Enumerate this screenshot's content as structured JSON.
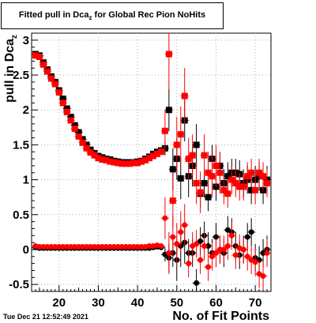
{
  "title": {
    "main": "Fitted pull in Dca",
    "sub": "z",
    "rest": " for Global Rec Pion NoHits"
  },
  "timestamp": "Tue Dec 21 12:52:49 2021",
  "colors": {
    "series_black": "#000000",
    "series_red": "#ff0000",
    "grid": "#b0b0b0"
  },
  "chart_data": {
    "type": "scatter",
    "title": "Fitted pull in Dca_z for Global Rec Pion NoHits",
    "xlabel": "No. of Fit Points",
    "ylabel": "pull in Dca_z",
    "xlim": [
      13,
      74
    ],
    "ylim": [
      -0.6,
      3.1
    ],
    "x_ticks": [
      20,
      30,
      40,
      50,
      60,
      70
    ],
    "y_ticks": [
      -0.5,
      0,
      0.5,
      1,
      1.5,
      2,
      2.5,
      3
    ],
    "x_tick_labels": [
      "20",
      "30",
      "40",
      "50",
      "60",
      "70"
    ],
    "y_tick_labels": [
      "-0.5",
      "0",
      "0.5",
      "1",
      "1.5",
      "2",
      "2.5",
      "3"
    ],
    "grid": true,
    "legend": "none",
    "series": [
      {
        "color": "#000000",
        "marker": "square",
        "points": [
          [
            14,
            2.8,
            0
          ],
          [
            15,
            2.78,
            0
          ],
          [
            16,
            2.68,
            0
          ],
          [
            17,
            2.58,
            0
          ],
          [
            18,
            2.48,
            0
          ],
          [
            19,
            2.4,
            0
          ],
          [
            20,
            2.28,
            0
          ],
          [
            21,
            2.16,
            0
          ],
          [
            22,
            2.02,
            0
          ],
          [
            23,
            1.9,
            0
          ],
          [
            24,
            1.78,
            0
          ],
          [
            25,
            1.68,
            0
          ],
          [
            26,
            1.58,
            0
          ],
          [
            27,
            1.5,
            0
          ],
          [
            28,
            1.43,
            0
          ],
          [
            29,
            1.38,
            0
          ],
          [
            30,
            1.34,
            0
          ],
          [
            31,
            1.32,
            0
          ],
          [
            32,
            1.3,
            0
          ],
          [
            33,
            1.29,
            0
          ],
          [
            34,
            1.27,
            0
          ],
          [
            35,
            1.26,
            0
          ],
          [
            36,
            1.25,
            0
          ],
          [
            37,
            1.25,
            0
          ],
          [
            38,
            1.25,
            0
          ],
          [
            39,
            1.25,
            0
          ],
          [
            40,
            1.26,
            0
          ],
          [
            41,
            1.27,
            0
          ],
          [
            42,
            1.3,
            0
          ],
          [
            43,
            1.33,
            0
          ],
          [
            44,
            1.37,
            0
          ],
          [
            45,
            1.4,
            0
          ],
          [
            46,
            1.42,
            0
          ],
          [
            47,
            1.45,
            0.1
          ],
          [
            48,
            2.0,
            0.3
          ],
          [
            49,
            1.15,
            0.3
          ],
          [
            50,
            1.3,
            0.3
          ],
          [
            51,
            1.02,
            0.3
          ],
          [
            52,
            1.85,
            0.3
          ],
          [
            53,
            1.05,
            0.3
          ],
          [
            54,
            1.2,
            0.3
          ],
          [
            55,
            1.5,
            0.3
          ],
          [
            56,
            0.8,
            0.2
          ],
          [
            57,
            0.95,
            0.2
          ],
          [
            58,
            0.75,
            0.2
          ],
          [
            59,
            1.3,
            0.2
          ],
          [
            60,
            0.9,
            0.2
          ],
          [
            61,
            1.2,
            0.2
          ],
          [
            62,
            0.95,
            0.2
          ],
          [
            63,
            1.05,
            0.2
          ],
          [
            64,
            1.1,
            0.2
          ],
          [
            65,
            1.1,
            0.2
          ],
          [
            66,
            1.08,
            0.2
          ],
          [
            67,
            0.95,
            0.2
          ],
          [
            68,
            1.0,
            0.2
          ],
          [
            69,
            0.85,
            0.2
          ],
          [
            70,
            1.0,
            0.2
          ],
          [
            71,
            1.05,
            0.2
          ],
          [
            72,
            0.85,
            0.2
          ],
          [
            73,
            1.0,
            0.2
          ]
        ]
      },
      {
        "color": "#ff0000",
        "marker": "square",
        "points": [
          [
            14,
            2.78,
            0
          ],
          [
            15,
            2.76,
            0
          ],
          [
            16,
            2.65,
            0
          ],
          [
            17,
            2.55,
            0
          ],
          [
            18,
            2.45,
            0
          ],
          [
            19,
            2.37,
            0
          ],
          [
            20,
            2.25,
            0
          ],
          [
            21,
            2.1,
            0
          ],
          [
            22,
            1.97,
            0
          ],
          [
            23,
            1.85,
            0
          ],
          [
            24,
            1.73,
            0
          ],
          [
            25,
            1.62,
            0
          ],
          [
            26,
            1.53,
            0
          ],
          [
            27,
            1.45,
            0
          ],
          [
            28,
            1.39,
            0
          ],
          [
            29,
            1.35,
            0
          ],
          [
            30,
            1.31,
            0
          ],
          [
            31,
            1.29,
            0
          ],
          [
            32,
            1.28,
            0
          ],
          [
            33,
            1.26,
            0
          ],
          [
            34,
            1.25,
            0
          ],
          [
            35,
            1.24,
            0
          ],
          [
            36,
            1.23,
            0
          ],
          [
            37,
            1.23,
            0
          ],
          [
            38,
            1.23,
            0
          ],
          [
            39,
            1.24,
            0
          ],
          [
            40,
            1.24,
            0
          ],
          [
            41,
            1.26,
            0
          ],
          [
            42,
            1.28,
            0
          ],
          [
            43,
            1.31,
            0
          ],
          [
            44,
            1.34,
            0
          ],
          [
            45,
            1.37,
            0
          ],
          [
            46,
            1.4,
            0
          ],
          [
            47,
            1.7,
            0.3
          ],
          [
            48,
            2.8,
            0.5
          ],
          [
            49,
            0.7,
            0.4
          ],
          [
            50,
            1.5,
            0.4
          ],
          [
            51,
            1.65,
            0.4
          ],
          [
            52,
            2.2,
            0.4
          ],
          [
            53,
            1.3,
            0.3
          ],
          [
            54,
            1.35,
            0.3
          ],
          [
            55,
            0.95,
            0.3
          ],
          [
            56,
            0.82,
            0.3
          ],
          [
            57,
            1.35,
            0.3
          ],
          [
            58,
            1.1,
            0.3
          ],
          [
            59,
            1.05,
            0.3
          ],
          [
            60,
            1.2,
            0.3
          ],
          [
            61,
            1.1,
            0.3
          ],
          [
            62,
            0.85,
            0.2
          ],
          [
            63,
            0.8,
            0.2
          ],
          [
            64,
            1.0,
            0.2
          ],
          [
            65,
            0.95,
            0.2
          ],
          [
            66,
            0.9,
            0.2
          ],
          [
            67,
            0.9,
            0.2
          ],
          [
            68,
            1.05,
            0.2
          ],
          [
            69,
            1.1,
            0.2
          ],
          [
            70,
            0.85,
            0.2
          ],
          [
            71,
            1.1,
            0.2
          ],
          [
            72,
            1.05,
            0.2
          ],
          [
            73,
            0.95,
            0.2
          ]
        ]
      },
      {
        "color": "#000000",
        "marker": "circle",
        "points": [
          [
            14,
            0.03,
            0
          ],
          [
            15,
            0.02,
            0
          ],
          [
            16,
            0.02,
            0
          ],
          [
            17,
            0.02,
            0
          ],
          [
            18,
            0.02,
            0
          ],
          [
            19,
            0.02,
            0
          ],
          [
            20,
            0.02,
            0
          ],
          [
            21,
            0.02,
            0
          ],
          [
            22,
            0.02,
            0
          ],
          [
            23,
            0.02,
            0
          ],
          [
            24,
            0.02,
            0
          ],
          [
            25,
            0.02,
            0
          ],
          [
            26,
            0.02,
            0
          ],
          [
            27,
            0.02,
            0
          ],
          [
            28,
            0.02,
            0
          ],
          [
            29,
            0.02,
            0
          ],
          [
            30,
            0.02,
            0
          ],
          [
            31,
            0.02,
            0
          ],
          [
            32,
            0.02,
            0
          ],
          [
            33,
            0.02,
            0
          ],
          [
            34,
            0.02,
            0
          ],
          [
            35,
            0.02,
            0
          ],
          [
            36,
            0.02,
            0
          ],
          [
            37,
            0.02,
            0
          ],
          [
            38,
            0.02,
            0
          ],
          [
            39,
            0.02,
            0
          ],
          [
            40,
            0.02,
            0
          ],
          [
            41,
            0.02,
            0
          ],
          [
            42,
            0.02,
            0
          ],
          [
            43,
            0.02,
            0
          ],
          [
            44,
            0.03,
            0
          ],
          [
            45,
            0.04,
            0
          ],
          [
            46,
            0.03,
            0
          ],
          [
            47,
            -0.07,
            0.1
          ],
          [
            48,
            -0.12,
            0.2
          ],
          [
            49,
            -0.05,
            0.2
          ],
          [
            50,
            -0.15,
            0.3
          ],
          [
            51,
            0.05,
            0.3
          ],
          [
            52,
            0.1,
            0.3
          ],
          [
            53,
            -0.05,
            0.2
          ],
          [
            54,
            -0.05,
            0.2
          ],
          [
            55,
            -0.48,
            0.2
          ],
          [
            56,
            0.12,
            0.2
          ],
          [
            57,
            0.2,
            0.2
          ],
          [
            58,
            0.05,
            0.2
          ],
          [
            59,
            -0.05,
            0.2
          ],
          [
            60,
            0.18,
            0.2
          ],
          [
            61,
            0.0,
            0.2
          ],
          [
            62,
            -0.05,
            0.2
          ],
          [
            63,
            0.28,
            0.2
          ],
          [
            64,
            0.25,
            0.2
          ],
          [
            65,
            0.05,
            0.2
          ],
          [
            66,
            -0.08,
            0.2
          ],
          [
            67,
            0.0,
            0.2
          ],
          [
            68,
            0.18,
            0.2
          ],
          [
            69,
            0.25,
            0.2
          ],
          [
            70,
            -0.12,
            0.2
          ],
          [
            71,
            -0.15,
            0.2
          ],
          [
            72,
            -0.05,
            0.2
          ],
          [
            73,
            0.0,
            0.2
          ]
        ]
      },
      {
        "color": "#ff0000",
        "marker": "circle",
        "points": [
          [
            14,
            0.05,
            0
          ],
          [
            15,
            0.04,
            0
          ],
          [
            16,
            0.04,
            0
          ],
          [
            17,
            0.04,
            0
          ],
          [
            18,
            0.04,
            0
          ],
          [
            19,
            0.04,
            0
          ],
          [
            20,
            0.04,
            0
          ],
          [
            21,
            0.04,
            0
          ],
          [
            22,
            0.04,
            0
          ],
          [
            23,
            0.04,
            0
          ],
          [
            24,
            0.04,
            0
          ],
          [
            25,
            0.04,
            0
          ],
          [
            26,
            0.04,
            0
          ],
          [
            27,
            0.04,
            0
          ],
          [
            28,
            0.04,
            0
          ],
          [
            29,
            0.04,
            0
          ],
          [
            30,
            0.04,
            0
          ],
          [
            31,
            0.04,
            0
          ],
          [
            32,
            0.04,
            0
          ],
          [
            33,
            0.04,
            0
          ],
          [
            34,
            0.04,
            0
          ],
          [
            35,
            0.04,
            0
          ],
          [
            36,
            0.04,
            0
          ],
          [
            37,
            0.04,
            0
          ],
          [
            38,
            0.04,
            0
          ],
          [
            39,
            0.04,
            0
          ],
          [
            40,
            0.04,
            0
          ],
          [
            41,
            0.04,
            0
          ],
          [
            42,
            0.04,
            0
          ],
          [
            43,
            0.05,
            0
          ],
          [
            44,
            0.05,
            0
          ],
          [
            45,
            0.06,
            0
          ],
          [
            46,
            0.05,
            0
          ],
          [
            47,
            0.45,
            0.3
          ],
          [
            48,
            -0.05,
            0.3
          ],
          [
            49,
            0.18,
            0.3
          ],
          [
            50,
            0.08,
            0.3
          ],
          [
            51,
            0.25,
            0.3
          ],
          [
            52,
            0.35,
            0.3
          ],
          [
            53,
            -0.2,
            0.2
          ],
          [
            54,
            0.05,
            0.2
          ],
          [
            55,
            0.08,
            0.2
          ],
          [
            56,
            -0.15,
            0.2
          ],
          [
            57,
            0.05,
            0.2
          ],
          [
            58,
            -0.25,
            0.2
          ],
          [
            59,
            -0.1,
            0.2
          ],
          [
            60,
            -0.05,
            0.2
          ],
          [
            61,
            0.0,
            0.2
          ],
          [
            62,
            0.0,
            0.2
          ],
          [
            63,
            0.05,
            0.2
          ],
          [
            64,
            0.2,
            0.2
          ],
          [
            65,
            -0.08,
            0.2
          ],
          [
            66,
            0.02,
            0.2
          ],
          [
            67,
            0.0,
            0.2
          ],
          [
            68,
            -0.1,
            0.2
          ],
          [
            69,
            -0.15,
            0.2
          ],
          [
            70,
            -0.18,
            0.2
          ],
          [
            71,
            -0.35,
            0.2
          ],
          [
            72,
            -0.38,
            0.2
          ],
          [
            73,
            -0.05,
            0.2
          ]
        ]
      }
    ]
  }
}
